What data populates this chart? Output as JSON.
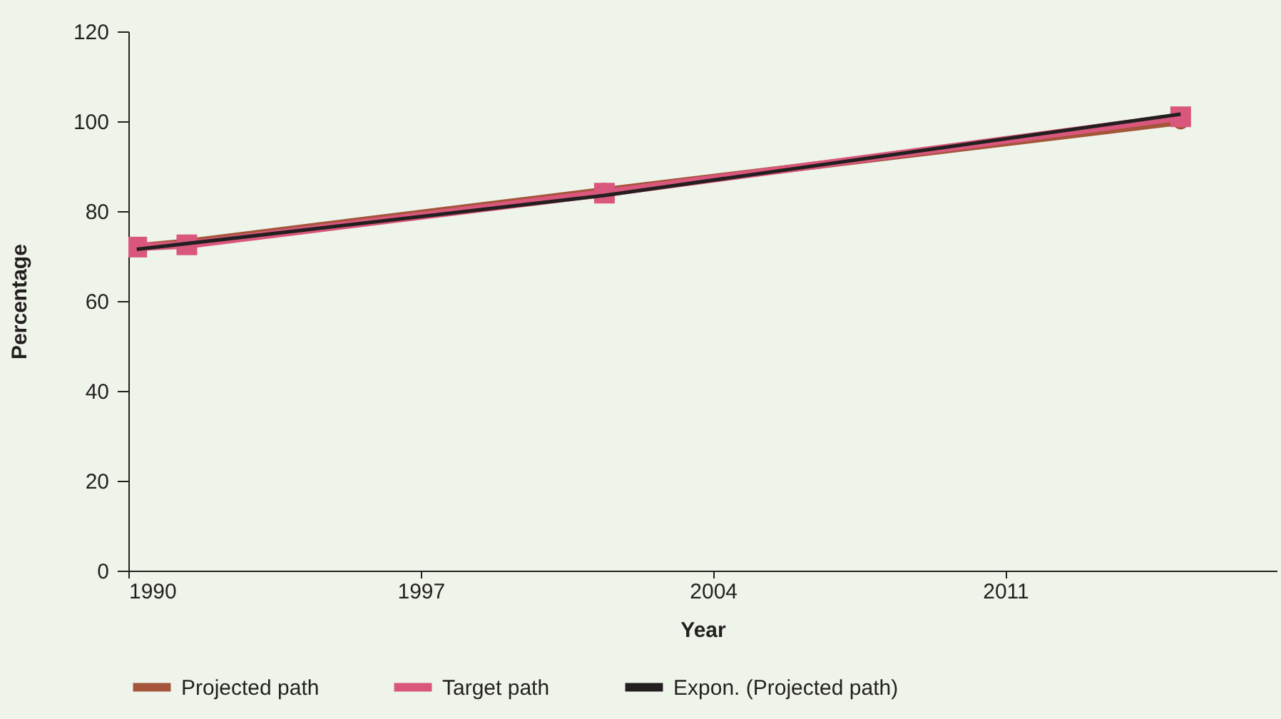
{
  "chart_data": {
    "type": "line",
    "xlabel": "Year",
    "ylabel": "Percentage",
    "xlim": [
      1990,
      2017.5
    ],
    "xticks": [
      1990,
      1997,
      2004,
      2011
    ],
    "ylim": [
      0,
      120
    ],
    "yticks": [
      0,
      20,
      40,
      60,
      80,
      100,
      120
    ],
    "grid": false,
    "legend": "bottom",
    "line_style": "solid",
    "series": [
      {
        "name": "Projected path",
        "color": "#a4553a",
        "marker": "circle",
        "x": [
          1990.2,
          1991.4,
          2001.4,
          2015.2
        ],
        "values": [
          72,
          73,
          84.5,
          100
        ]
      },
      {
        "name": "Target path",
        "color": "#d9577c",
        "marker": "square",
        "x": [
          1990.2,
          1991.4,
          2001.4,
          2015.2
        ],
        "values": [
          72,
          72.5,
          84,
          101
        ]
      },
      {
        "name": "Expon. (Projected path)",
        "color": "#231f20",
        "marker": "none",
        "x": [
          1990.2,
          2001.4,
          2015.2
        ],
        "values": [
          71.5,
          83.5,
          101.6
        ]
      }
    ]
  }
}
